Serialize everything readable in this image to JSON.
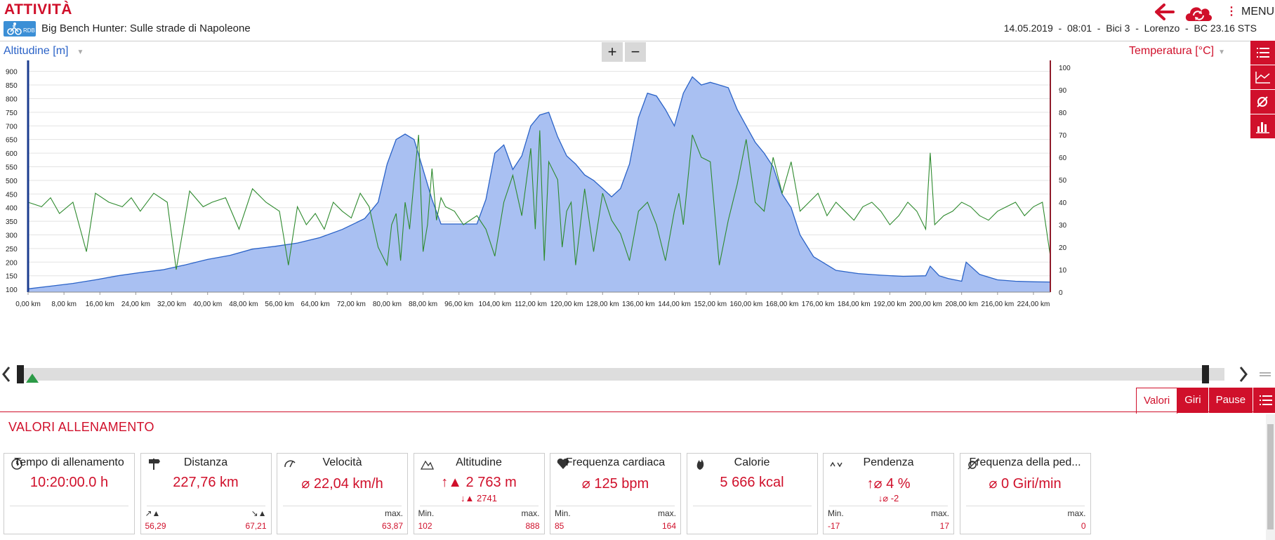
{
  "header": {
    "title": "ATTIVITÀ",
    "activity_badge": "RDB",
    "activity_name": "Big Bench Hunter: Sulle strade di Napoleone",
    "meta": "14.05.2019  -  08:01  -  Bici 3  -  Lorenzo  -  BC 23.16 STS",
    "menu_label": "MENU"
  },
  "chart_controls": {
    "left_axis_select": "Altitudine [m]",
    "right_axis_select": "Temperatura [°C]",
    "zoom_in": "+",
    "zoom_out": "−"
  },
  "colors": {
    "accent": "#d0102b",
    "altitude_fill": "#a9c0f2",
    "altitude_line": "#2a62c7",
    "temperature_line": "#2e8a2e"
  },
  "side_toolbar": [
    "list-icon",
    "line-chart-icon",
    "average-icon",
    "bar-chart-icon"
  ],
  "chart_data": {
    "type": "area",
    "x_unit": "km",
    "x_ticks": [
      "0,00 km",
      "8,00 km",
      "16,00 km",
      "24,00 km",
      "32,00 km",
      "40,00 km",
      "48,00 km",
      "56,00 km",
      "64,00 km",
      "72,00 km",
      "80,00 km",
      "88,00 km",
      "96,00 km",
      "104,00 km",
      "112,00 km",
      "120,00 km",
      "128,00 km",
      "136,00 km",
      "144,00 km",
      "152,00 km",
      "160,00 km",
      "168,00 km",
      "176,00 km",
      "184,00 km",
      "192,00 km",
      "200,00 km",
      "208,00 km",
      "216,00 km",
      "224,00 km"
    ],
    "y_left_ticks": [
      "900",
      "850",
      "800",
      "750",
      "700",
      "650",
      "600",
      "550",
      "500",
      "450",
      "400",
      "350",
      "300",
      "250",
      "200",
      "150",
      "100"
    ],
    "y_right_ticks": [
      "100",
      "90",
      "80",
      "70",
      "60",
      "50",
      "40",
      "30",
      "20",
      "10",
      "0"
    ],
    "ylim_left": [
      90,
      930
    ],
    "ylim_right": [
      0,
      100
    ],
    "xlim": [
      0,
      227.76
    ],
    "grid": true,
    "series": [
      {
        "name": "Altitudine [m]",
        "axis": "left",
        "x": [
          0,
          5,
          10,
          15,
          20,
          25,
          30,
          35,
          40,
          45,
          50,
          55,
          60,
          65,
          70,
          75,
          78,
          80,
          82,
          84,
          86,
          88,
          90,
          92,
          95,
          100,
          102,
          104,
          106,
          108,
          110,
          112,
          114,
          116,
          118,
          120,
          122,
          124,
          126,
          128,
          130,
          132,
          134,
          136,
          138,
          140,
          142,
          144,
          146,
          148,
          150,
          152,
          154,
          156,
          158,
          160,
          162,
          164,
          166,
          168,
          170,
          172,
          175,
          180,
          185,
          190,
          195,
          200,
          201,
          203,
          205,
          208,
          209,
          212,
          216,
          220,
          224,
          227.76
        ],
        "values": [
          102,
          112,
          122,
          135,
          150,
          162,
          172,
          190,
          210,
          225,
          248,
          258,
          270,
          290,
          320,
          360,
          420,
          560,
          650,
          670,
          650,
          540,
          430,
          340,
          340,
          340,
          430,
          600,
          630,
          540,
          590,
          700,
          740,
          750,
          660,
          590,
          560,
          520,
          500,
          470,
          440,
          470,
          560,
          730,
          820,
          810,
          760,
          700,
          820,
          880,
          850,
          860,
          850,
          840,
          760,
          700,
          640,
          600,
          550,
          450,
          400,
          300,
          220,
          170,
          158,
          152,
          148,
          150,
          185,
          150,
          140,
          130,
          200,
          155,
          135,
          130,
          128,
          127
        ]
      },
      {
        "name": "Temperatura [°C]",
        "axis": "right",
        "x": [
          0,
          3,
          5,
          7,
          10,
          13,
          15,
          18,
          21,
          23,
          25,
          28,
          31,
          33,
          36,
          39,
          41,
          44,
          47,
          50,
          53,
          56,
          58,
          60,
          62,
          64,
          66,
          68,
          70,
          72,
          74,
          76,
          78,
          80,
          81,
          82,
          83,
          84,
          85,
          86,
          87,
          88,
          89,
          90,
          91,
          92,
          93,
          95,
          97,
          100,
          102,
          104,
          106,
          108,
          110,
          112,
          113,
          114,
          115,
          116,
          118,
          119,
          120,
          121,
          122,
          124,
          126,
          128,
          130,
          132,
          134,
          136,
          138,
          140,
          142,
          144,
          145,
          146,
          148,
          150,
          152,
          154,
          156,
          158,
          160,
          162,
          164,
          166,
          168,
          170,
          172,
          174,
          176,
          178,
          180,
          182,
          184,
          186,
          188,
          190,
          192,
          194,
          196,
          198,
          200,
          201,
          202,
          204,
          206,
          208,
          210,
          212,
          214,
          216,
          218,
          220,
          222,
          224,
          226,
          227.76
        ],
        "values": [
          40,
          38,
          42,
          35,
          40,
          18,
          44,
          40,
          38,
          42,
          36,
          44,
          40,
          10,
          45,
          38,
          40,
          42,
          28,
          46,
          40,
          36,
          12,
          38,
          30,
          35,
          28,
          40,
          36,
          33,
          44,
          38,
          20,
          12,
          30,
          35,
          14,
          40,
          28,
          50,
          70,
          18,
          30,
          55,
          32,
          42,
          38,
          36,
          30,
          34,
          28,
          16,
          40,
          52,
          34,
          64,
          28,
          72,
          14,
          58,
          50,
          20,
          36,
          40,
          12,
          46,
          18,
          44,
          32,
          26,
          14,
          36,
          40,
          30,
          14,
          36,
          44,
          30,
          70,
          60,
          58,
          12,
          32,
          48,
          68,
          40,
          36,
          60,
          44,
          58,
          36,
          40,
          44,
          34,
          40,
          36,
          32,
          38,
          40,
          36,
          30,
          34,
          40,
          36,
          28,
          62,
          30,
          34,
          36,
          40,
          38,
          34,
          32,
          36,
          38,
          40,
          34,
          38,
          40,
          16
        ]
      }
    ]
  },
  "tabs": [
    "Valori",
    "Giri",
    "Pause"
  ],
  "section_title": "VALORI ALLENAMENTO",
  "cards": [
    {
      "icon": "stopwatch-icon",
      "title": "Tempo di allenamento",
      "value": "10:20:00.0 h",
      "sub": "",
      "foot_l": "",
      "foot_r": "",
      "foot_lv": "",
      "foot_rv": ""
    },
    {
      "icon": "signpost-icon",
      "title": "Distanza",
      "value": "227,76 km",
      "sub": "",
      "foot_l": "↗︎▲",
      "foot_r": "↘︎▲",
      "foot_lv": "56,29",
      "foot_rv": "67,21"
    },
    {
      "icon": "speedometer-icon",
      "title": "Velocità",
      "value": "⌀ 22,04 km/h",
      "sub": "",
      "foot_l": "",
      "foot_r": "max.",
      "foot_lv": "",
      "foot_rv": "63,87"
    },
    {
      "icon": "mountain-icon",
      "title": "Altitudine",
      "value": "↑▲ 2 763 m",
      "sub": "↓▲  2741",
      "foot_l": "Min.",
      "foot_r": "max.",
      "foot_lv": "102",
      "foot_rv": "888"
    },
    {
      "icon": "heart-icon",
      "title": "Frequenza cardiaca",
      "value": "⌀ 125 bpm",
      "sub": "",
      "foot_l": "Min.",
      "foot_r": "max.",
      "foot_lv": "85",
      "foot_rv": "164"
    },
    {
      "icon": "flame-icon",
      "title": "Calorie",
      "value": "5 666 kcal",
      "sub": "",
      "foot_l": "",
      "foot_r": "",
      "foot_lv": "",
      "foot_rv": ""
    },
    {
      "icon": "slope-icon",
      "title": "Pendenza",
      "value": "↑⌀ 4 %",
      "sub": "↓⌀  -2",
      "foot_l": "Min.",
      "foot_r": "max.",
      "foot_lv": "-17",
      "foot_rv": "17"
    },
    {
      "icon": "cadence-icon",
      "title": "Frequenza della ped...",
      "value": "⌀ 0 Giri/min",
      "sub": "",
      "foot_l": "",
      "foot_r": "max.",
      "foot_lv": "",
      "foot_rv": "0"
    }
  ]
}
